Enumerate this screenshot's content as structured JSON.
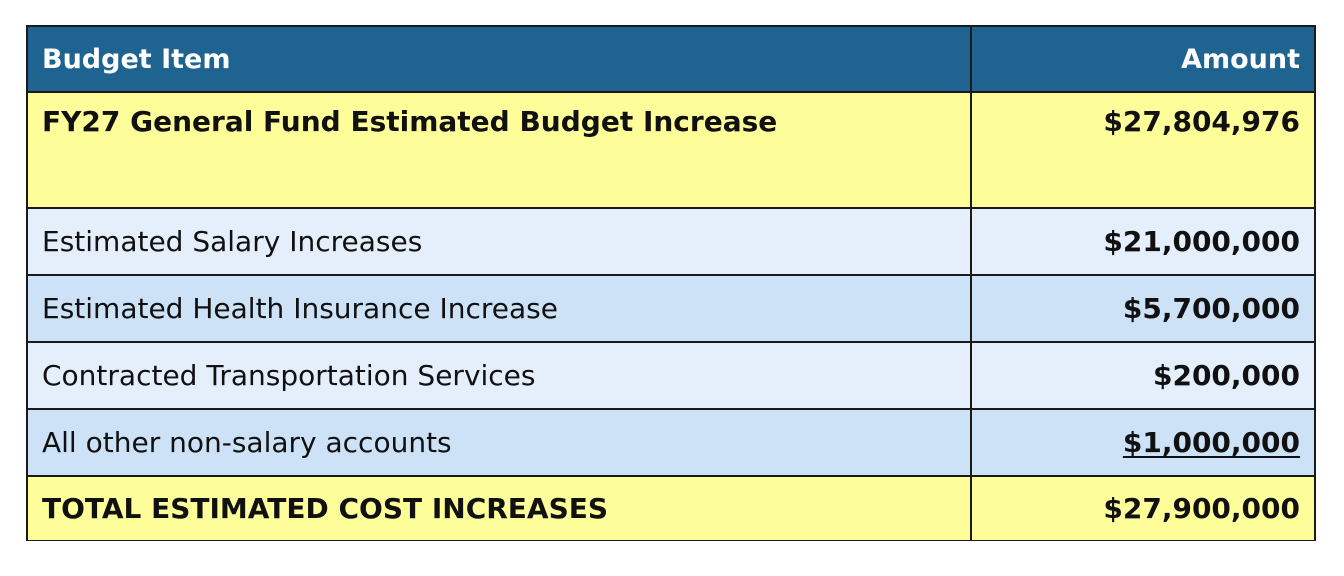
{
  "header": {
    "item_label": "Budget Item",
    "amount_label": "Amount"
  },
  "rows": [
    {
      "label": "FY27 General Fund Estimated Budget Increase",
      "amount": "$27,804,976"
    },
    {
      "label": "Estimated Salary Increases",
      "amount": "$21,000,000"
    },
    {
      "label": "Estimated Health Insurance Increase",
      "amount": "$5,700,000"
    },
    {
      "label": "Contracted Transportation Services",
      "amount": "$200,000"
    },
    {
      "label": "All other non-salary accounts",
      "amount": "$1,000,000"
    }
  ],
  "total": {
    "label": "TOTAL ESTIMATED COST INCREASES",
    "amount": "$27,900,000"
  },
  "colors": {
    "header_bg": "#1f6391",
    "highlight_bg": "#fdfd9a",
    "row_light": "#e5effb",
    "row_mid": "#cde1f7"
  }
}
